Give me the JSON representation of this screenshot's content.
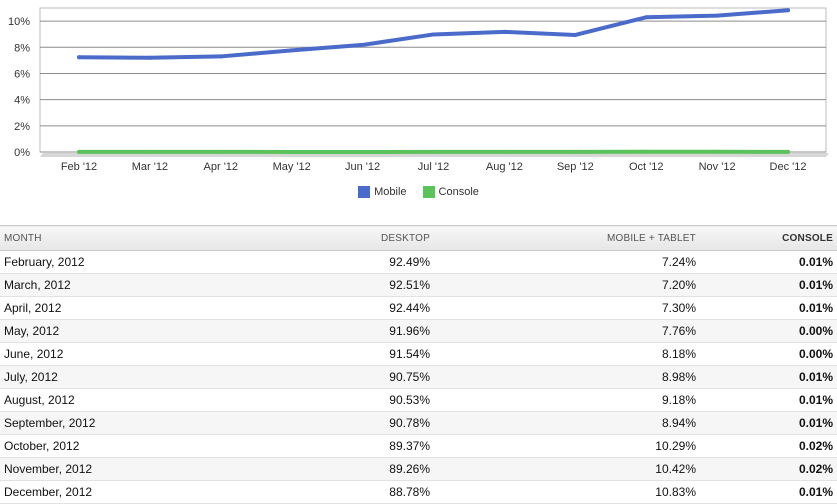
{
  "chart_data": {
    "type": "line",
    "categories": [
      "Feb '12",
      "Mar '12",
      "Apr '12",
      "May '12",
      "Jun '12",
      "Jul '12",
      "Aug '12",
      "Sep '12",
      "Oct '12",
      "Nov '12",
      "Dec '12"
    ],
    "ylim": [
      0,
      11
    ],
    "yticks": [
      "0%",
      "2%",
      "4%",
      "6%",
      "8%",
      "10%"
    ],
    "grid": true,
    "legend_position": "bottom",
    "series": [
      {
        "name": "Mobile",
        "color": "#4a6bc9",
        "values": [
          7.24,
          7.2,
          7.3,
          7.76,
          8.18,
          8.98,
          9.18,
          8.94,
          10.29,
          10.42,
          10.83
        ]
      },
      {
        "name": "Console",
        "color": "#5cc25c",
        "values": [
          0.01,
          0.01,
          0.01,
          0.0,
          0.0,
          0.01,
          0.01,
          0.01,
          0.02,
          0.02,
          0.01
        ]
      }
    ]
  },
  "table": {
    "headers": {
      "month": "MONTH",
      "desktop": "DESKTOP",
      "mobile": "MOBILE + TABLET",
      "console": "CONSOLE"
    },
    "rows": [
      {
        "month": "February, 2012",
        "desktop": "92.49%",
        "mobile": "7.24%",
        "console": "0.01%"
      },
      {
        "month": "March, 2012",
        "desktop": "92.51%",
        "mobile": "7.20%",
        "console": "0.01%"
      },
      {
        "month": "April, 2012",
        "desktop": "92.44%",
        "mobile": "7.30%",
        "console": "0.01%"
      },
      {
        "month": "May, 2012",
        "desktop": "91.96%",
        "mobile": "7.76%",
        "console": "0.00%"
      },
      {
        "month": "June, 2012",
        "desktop": "91.54%",
        "mobile": "8.18%",
        "console": "0.00%"
      },
      {
        "month": "July, 2012",
        "desktop": "90.75%",
        "mobile": "8.98%",
        "console": "0.01%"
      },
      {
        "month": "August, 2012",
        "desktop": "90.53%",
        "mobile": "9.18%",
        "console": "0.01%"
      },
      {
        "month": "September, 2012",
        "desktop": "90.78%",
        "mobile": "8.94%",
        "console": "0.01%"
      },
      {
        "month": "October, 2012",
        "desktop": "89.37%",
        "mobile": "10.29%",
        "console": "0.02%"
      },
      {
        "month": "November, 2012",
        "desktop": "89.26%",
        "mobile": "10.42%",
        "console": "0.02%"
      },
      {
        "month": "December, 2012",
        "desktop": "88.78%",
        "mobile": "10.83%",
        "console": "0.01%"
      }
    ]
  }
}
